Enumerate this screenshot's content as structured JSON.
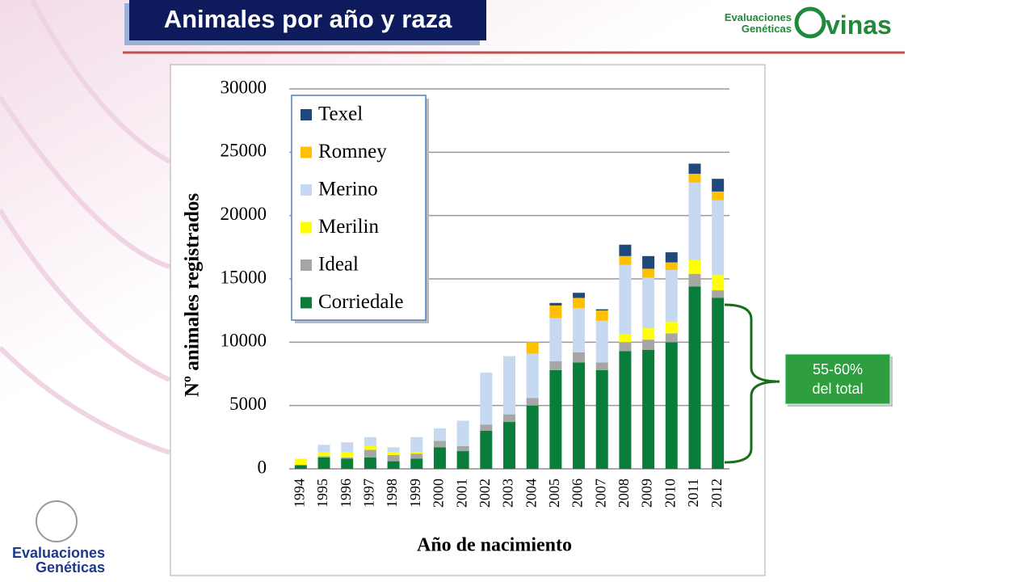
{
  "header": {
    "title": "Animales por año y raza",
    "logo_line1": "Evaluaciones",
    "logo_line2": "Genéticas",
    "logo_word": "vinas"
  },
  "footer_logo": {
    "line1": "Evaluaciones",
    "line2": "Genéticas"
  },
  "chart_data": {
    "type": "stacked_bar",
    "ylabel": "Nº animales registrados",
    "xlabel": "Año de nacimiento",
    "categories": [
      "1994",
      "1995",
      "1996",
      "1997",
      "1998",
      "1999",
      "2000",
      "2001",
      "2002",
      "2003",
      "2004",
      "2005",
      "2006",
      "2007",
      "2008",
      "2009",
      "2010",
      "2011",
      "2012"
    ],
    "series": [
      {
        "name": "Corriedale",
        "color": "#0b7d3b",
        "values": [
          300,
          900,
          800,
          900,
          600,
          800,
          1700,
          1400,
          3000,
          3700,
          5000,
          7800,
          8400,
          7800,
          9300,
          9400,
          10000,
          14400,
          13500
        ]
      },
      {
        "name": "Ideal",
        "color": "#a6a6a6",
        "values": [
          0,
          100,
          100,
          600,
          500,
          400,
          500,
          400,
          500,
          600,
          600,
          700,
          800,
          600,
          700,
          800,
          700,
          1000,
          600
        ]
      },
      {
        "name": "Merilin",
        "color": "#ffff00",
        "values": [
          500,
          300,
          400,
          300,
          200,
          100,
          0,
          0,
          0,
          0,
          0,
          0,
          0,
          0,
          600,
          900,
          900,
          1100,
          1200
        ]
      },
      {
        "name": "Merino",
        "color": "#c6d9f1",
        "values": [
          0,
          600,
          800,
          700,
          400,
          1200,
          1000,
          2000,
          4100,
          4600,
          3500,
          3400,
          3500,
          3300,
          5500,
          4000,
          4100,
          6100,
          5900
        ]
      },
      {
        "name": "Romney",
        "color": "#ffc000",
        "values": [
          0,
          0,
          0,
          0,
          0,
          0,
          0,
          0,
          0,
          0,
          900,
          1000,
          800,
          800,
          700,
          700,
          600,
          700,
          700
        ]
      },
      {
        "name": "Texel",
        "color": "#1f497d",
        "values": [
          0,
          0,
          0,
          0,
          0,
          0,
          0,
          0,
          0,
          0,
          0,
          200,
          400,
          100,
          900,
          1000,
          800,
          800,
          1000
        ]
      }
    ],
    "ylim": [
      0,
      30000
    ],
    "yticks": [
      0,
      5000,
      10000,
      15000,
      20000,
      25000,
      30000
    ],
    "grid": true,
    "legend": "upper left",
    "annotation": [
      "55-60%",
      "del total"
    ]
  }
}
